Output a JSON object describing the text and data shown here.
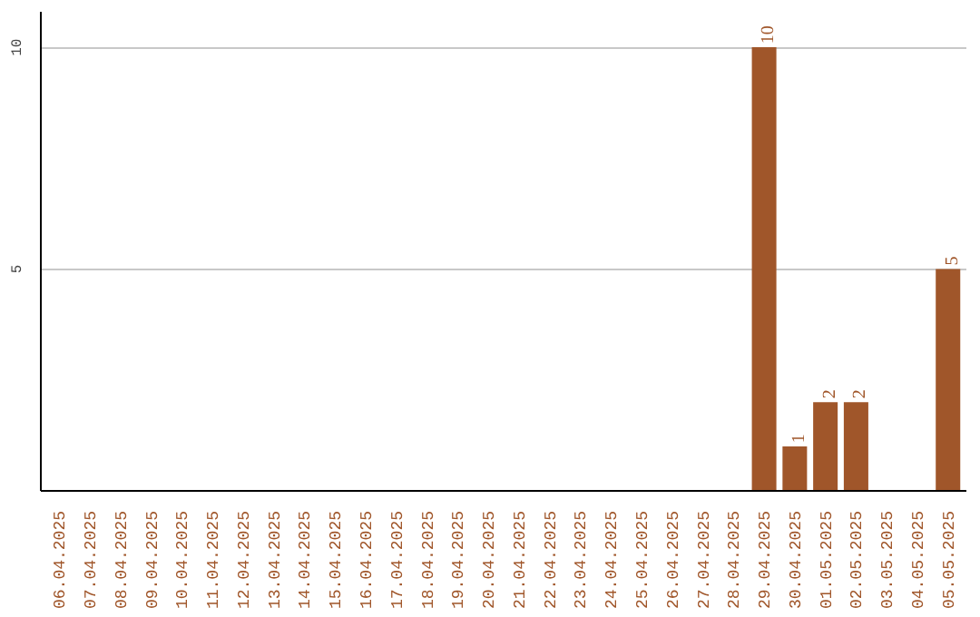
{
  "chart_data": {
    "type": "bar",
    "categories": [
      "06.04.2025",
      "07.04.2025",
      "08.04.2025",
      "09.04.2025",
      "10.04.2025",
      "11.04.2025",
      "12.04.2025",
      "13.04.2025",
      "14.04.2025",
      "15.04.2025",
      "16.04.2025",
      "17.04.2025",
      "18.04.2025",
      "19.04.2025",
      "20.04.2025",
      "21.04.2025",
      "22.04.2025",
      "23.04.2025",
      "24.04.2025",
      "25.04.2025",
      "26.04.2025",
      "27.04.2025",
      "28.04.2025",
      "29.04.2025",
      "30.04.2025",
      "01.05.2025",
      "02.05.2025",
      "03.05.2025",
      "04.05.2025",
      "05.05.2025"
    ],
    "values": [
      0,
      0,
      0,
      0,
      0,
      0,
      0,
      0,
      0,
      0,
      0,
      0,
      0,
      0,
      0,
      0,
      0,
      0,
      0,
      0,
      0,
      0,
      0,
      10,
      1,
      2,
      2,
      0,
      0,
      5
    ],
    "value_labels": [
      null,
      null,
      null,
      null,
      null,
      null,
      null,
      null,
      null,
      null,
      null,
      null,
      null,
      null,
      null,
      null,
      null,
      null,
      null,
      null,
      null,
      null,
      null,
      "10",
      "1",
      "2",
      "2",
      null,
      null,
      "5"
    ],
    "color": "#a0562a",
    "ylim": [
      0,
      10.8
    ],
    "yticks": [
      5,
      10
    ],
    "grid": "y"
  }
}
